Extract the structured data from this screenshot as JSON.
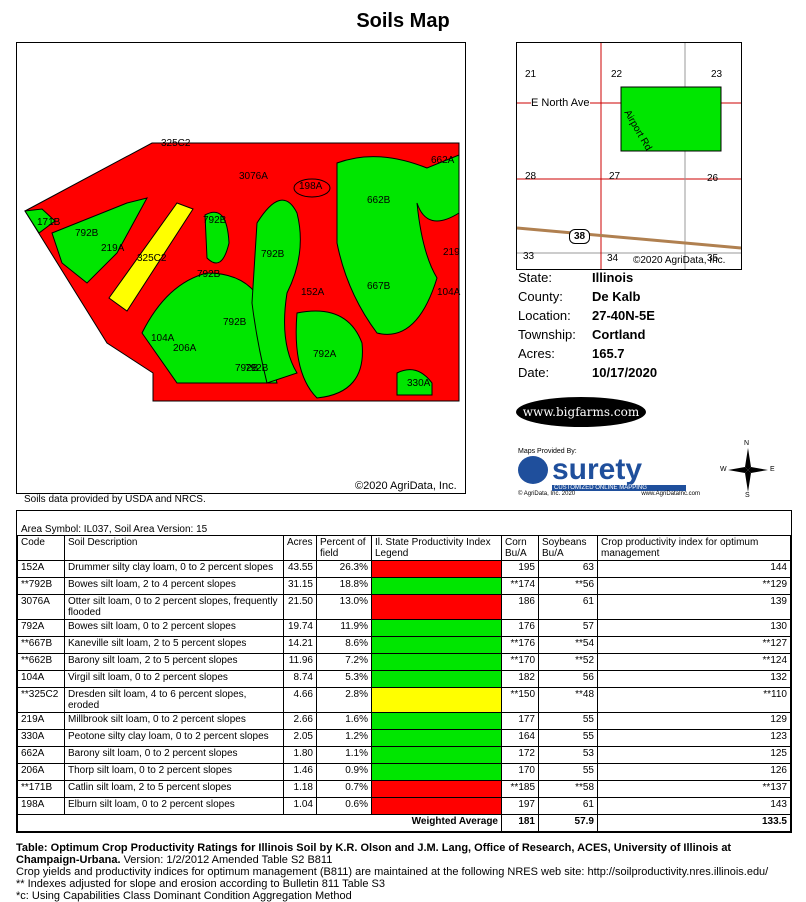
{
  "title": "Soils Map",
  "map": {
    "copyright": "©2020 AgriData, Inc.",
    "source_note": "Soils data provided by USDA and NRCS.",
    "labels": [
      "325C2",
      "662A",
      "3076A",
      "198A",
      "662B",
      "171B",
      "792B",
      "792B",
      "219A",
      "325C2",
      "792B",
      "792B",
      "219",
      "152A",
      "667B",
      "104A",
      "792B",
      "104A",
      "206A",
      "792A",
      "792B",
      "792B",
      "330A"
    ]
  },
  "inset": {
    "road_label": "E North Ave",
    "road2_label": "Airport Rd",
    "route_shield": "38",
    "sections": [
      "21",
      "22",
      "23",
      "28",
      "27",
      "26",
      "33",
      "34",
      "35"
    ],
    "copyright": "©2020 AgriData, Inc."
  },
  "info": [
    {
      "key": "State:",
      "value": "Illinois"
    },
    {
      "key": "County:",
      "value": "De Kalb"
    },
    {
      "key": "Location:",
      "value": "27-40N-5E"
    },
    {
      "key": "Township:",
      "value": "Cortland"
    },
    {
      "key": "Acres:",
      "value": "165.7"
    },
    {
      "key": "Date:",
      "value": "10/17/2020"
    }
  ],
  "logos": {
    "bigfarms": "www.bigfarms.com",
    "maps_provided_by": "Maps Provided By:",
    "surety": "surety",
    "surety_tag": "CUSTOMIZED ONLINE MAPPING",
    "surety_copy": "© AgriData, Inc. 2020",
    "surety_url": "www.AgriDataInc.com",
    "compass": {
      "n": "N",
      "s": "S",
      "e": "E",
      "w": "W"
    }
  },
  "table": {
    "area_symbol": "Area Symbol: IL037, Soil Area Version: 15",
    "headers": [
      "Code",
      "Soil Description",
      "Acres",
      "Percent of field",
      "Il. State Productivity Index Legend",
      "Corn Bu/A",
      "Soybeans Bu/A",
      "Crop productivity index for optimum management"
    ],
    "colors": {
      "red": "#ff0000",
      "green": "#00e600",
      "yellow": "#ffff00"
    },
    "rows": [
      {
        "code": "152A",
        "desc": "Drummer silty clay loam, 0 to 2 percent slopes",
        "acres": "43.55",
        "pct": "26.3%",
        "legend": "red",
        "corn": "195",
        "soy": "63",
        "cpi": "144"
      },
      {
        "code": "**792B",
        "desc": "Bowes silt loam, 2 to 4 percent slopes",
        "acres": "31.15",
        "pct": "18.8%",
        "legend": "green",
        "corn": "**174",
        "soy": "**56",
        "cpi": "**129"
      },
      {
        "code": "3076A",
        "desc": "Otter silt loam, 0 to 2 percent slopes, frequently flooded",
        "acres": "21.50",
        "pct": "13.0%",
        "legend": "red",
        "corn": "186",
        "soy": "61",
        "cpi": "139"
      },
      {
        "code": "792A",
        "desc": "Bowes silt loam, 0 to 2 percent slopes",
        "acres": "19.74",
        "pct": "11.9%",
        "legend": "green",
        "corn": "176",
        "soy": "57",
        "cpi": "130"
      },
      {
        "code": "**667B",
        "desc": "Kaneville silt loam, 2 to 5 percent slopes",
        "acres": "14.21",
        "pct": "8.6%",
        "legend": "green",
        "corn": "**176",
        "soy": "**54",
        "cpi": "**127"
      },
      {
        "code": "**662B",
        "desc": "Barony silt loam, 2 to 5 percent slopes",
        "acres": "11.96",
        "pct": "7.2%",
        "legend": "green",
        "corn": "**170",
        "soy": "**52",
        "cpi": "**124"
      },
      {
        "code": "104A",
        "desc": "Virgil silt loam, 0 to 2 percent slopes",
        "acres": "8.74",
        "pct": "5.3%",
        "legend": "green",
        "corn": "182",
        "soy": "56",
        "cpi": "132"
      },
      {
        "code": "**325C2",
        "desc": "Dresden silt loam, 4 to 6 percent slopes, eroded",
        "acres": "4.66",
        "pct": "2.8%",
        "legend": "yellow",
        "corn": "**150",
        "soy": "**48",
        "cpi": "**110"
      },
      {
        "code": "219A",
        "desc": "Millbrook silt loam, 0 to 2 percent slopes",
        "acres": "2.66",
        "pct": "1.6%",
        "legend": "green",
        "corn": "177",
        "soy": "55",
        "cpi": "129"
      },
      {
        "code": "330A",
        "desc": "Peotone silty clay loam, 0 to 2 percent slopes",
        "acres": "2.05",
        "pct": "1.2%",
        "legend": "green",
        "corn": "164",
        "soy": "55",
        "cpi": "123"
      },
      {
        "code": "662A",
        "desc": "Barony silt loam, 0 to 2 percent slopes",
        "acres": "1.80",
        "pct": "1.1%",
        "legend": "green",
        "corn": "172",
        "soy": "53",
        "cpi": "125"
      },
      {
        "code": "206A",
        "desc": "Thorp silt loam, 0 to 2 percent slopes",
        "acres": "1.46",
        "pct": "0.9%",
        "legend": "green",
        "corn": "170",
        "soy": "55",
        "cpi": "126"
      },
      {
        "code": "**171B",
        "desc": "Catlin silt loam, 2 to 5 percent slopes",
        "acres": "1.18",
        "pct": "0.7%",
        "legend": "red",
        "corn": "**185",
        "soy": "**58",
        "cpi": "**137"
      },
      {
        "code": "198A",
        "desc": "Elburn silt loam, 0 to 2 percent slopes",
        "acres": "1.04",
        "pct": "0.6%",
        "legend": "red",
        "corn": "197",
        "soy": "61",
        "cpi": "143"
      }
    ],
    "weighted_label": "Weighted Average",
    "weighted_corn": "181",
    "weighted_soy": "57.9",
    "weighted_cpi": "133.5"
  },
  "footer": {
    "line1": "Table: Optimum Crop Productivity Ratings for Illinois Soil by K.R. Olson and J.M. Lang, Office of Research, ACES, University of Illinois at Champaign-Urbana.",
    "line1b": " Version: 1/2/2012 Amended Table S2 B811",
    "line2": "Crop yields and productivity indices for optimum management (B811) are maintained at the following NRES web site: http://soilproductivity.nres.illinois.edu/",
    "line3": "** Indexes adjusted for slope and erosion according to Bulletin 811 Table S3",
    "line4": "*c: Using Capabilities Class Dominant Condition Aggregation Method"
  }
}
